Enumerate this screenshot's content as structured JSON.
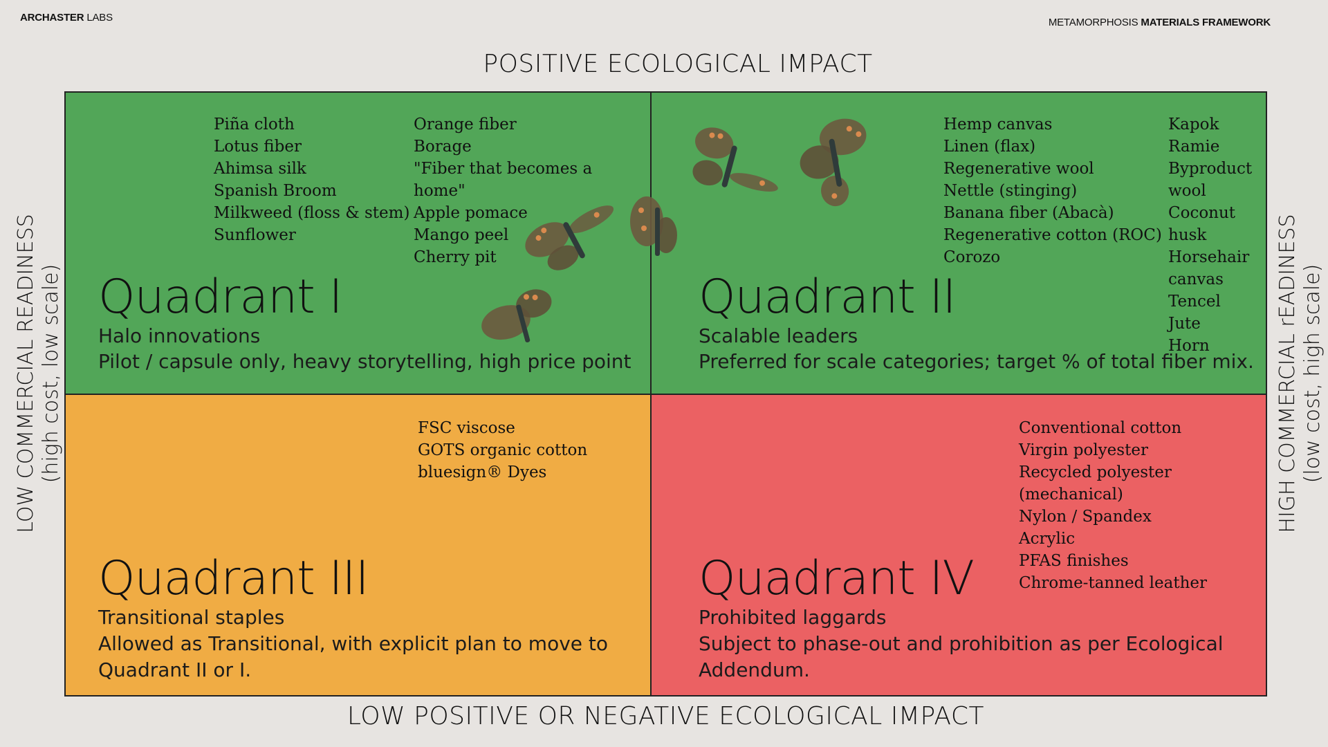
{
  "header": {
    "brand_bold": "ARCHASTER",
    "brand_light": "LABS",
    "framework_light": "METAMORPHOSIS",
    "framework_bold": "MATERIALS FRAMEWORK"
  },
  "axes": {
    "top": "POSITIVE ECOLOGICAL IMPACT",
    "bottom": "LOW POSITIVE OR NEGATIVE ECOLOGICAL IMPACT",
    "left_line1": "LOW COMMERCIAL READINESS",
    "left_line2": "(high cost, low scale)",
    "right_line1": "HIGH COMMERCIAL rEADINESS",
    "right_line2": "(low cost, high scale)"
  },
  "colors": {
    "background": "#e7e4e1",
    "quadrant_green": "#52a658",
    "quadrant_orange": "#f0ac44",
    "quadrant_red": "#eb6163"
  },
  "quadrants": {
    "q1": {
      "title": "Quadrant I",
      "subtitle": "Halo innovations",
      "description": "Pilot / capsule only, heavy storytelling, high price point",
      "list_a": [
        "Piña cloth",
        "Lotus fiber",
        "Ahimsa silk",
        "Spanish Broom",
        "Milkweed (floss & stem)",
        "Sunflower"
      ],
      "list_b": [
        "Orange fiber",
        "Borage",
        "\"Fiber that becomes a",
        "home\"",
        "Apple pomace",
        "Mango peel",
        "Cherry pit"
      ]
    },
    "q2": {
      "title": "Quadrant II",
      "subtitle": "Scalable leaders",
      "description": "Preferred for scale categories; target % of total fiber mix.",
      "list_a": [
        "Hemp canvas",
        "Linen (flax)",
        "Regenerative wool",
        "Nettle (stinging)",
        "Banana fiber (Abacà)",
        "Regenerative cotton (ROC)",
        "Corozo"
      ],
      "list_b": [
        "Kapok",
        "Ramie",
        "Byproduct wool",
        "Coconut husk",
        "Horsehair canvas",
        "Tencel",
        "Jute",
        "Horn"
      ]
    },
    "q3": {
      "title": "Quadrant III",
      "subtitle": "Transitional staples",
      "description_line1": "Allowed as Transitional, with explicit plan to move to",
      "description_line2": "Quadrant II or I.",
      "list_a": [
        "FSC viscose",
        "GOTS organic cotton",
        "bluesign® Dyes"
      ]
    },
    "q4": {
      "title": "Quadrant IV",
      "subtitle": "Prohibited laggards",
      "description_line1": "Subject to phase-out and prohibition as per Ecological",
      "description_line2": "Addendum.",
      "list_a": [
        "Conventional cotton",
        "Virgin polyester",
        "Recycled polyester",
        "(mechanical)",
        "Nylon / Spandex",
        "Acrylic",
        "PFAS finishes",
        "Chrome-tanned leather"
      ]
    }
  },
  "decorations": {
    "butterfly_icon": "butterfly-icon",
    "butterfly_wing_color": "#6b5a3f",
    "butterfly_accent_color": "#d98a4e"
  }
}
